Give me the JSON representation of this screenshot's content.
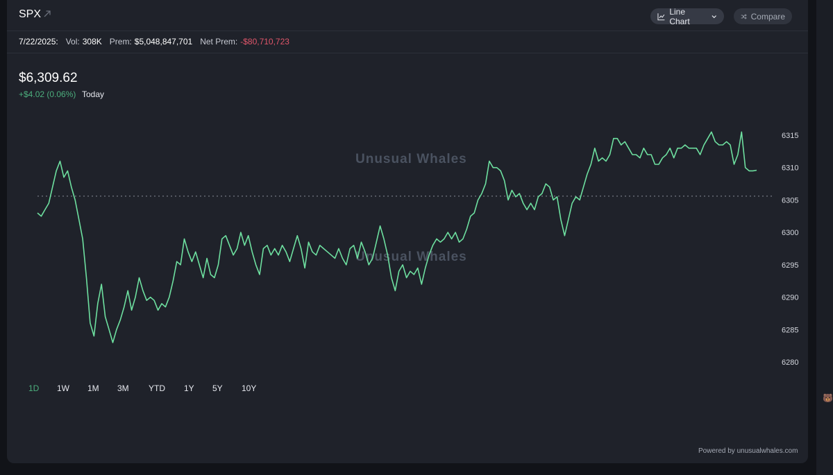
{
  "header": {
    "symbol": "SPX",
    "chart_type_label": "Line Chart",
    "compare_label": "Compare"
  },
  "stats": {
    "date": "7/22/2025:",
    "vol_label": "Vol:",
    "vol_value": "308K",
    "prem_label": "Prem:",
    "prem_value": "$5,048,847,701",
    "net_prem_label": "Net Prem:",
    "net_prem_value": "-$80,710,723"
  },
  "quote": {
    "price": "$6,309.62",
    "change": "+$4.02 (0.06%)",
    "period": "Today"
  },
  "watermark": "Unusual Whales",
  "timeframes": [
    "1D",
    "1W",
    "1M",
    "3M",
    "YTD",
    "1Y",
    "5Y",
    "10Y"
  ],
  "active_timeframe": "1D",
  "footer": "Powered by unusualwhales.com",
  "colors": {
    "line": "#6ee0a0",
    "positive": "#4caf7d",
    "negative": "#e0566a",
    "background": "#1f222a"
  },
  "chart_data": {
    "type": "line",
    "title": "",
    "xlabel": "",
    "ylabel": "",
    "ylim": [
      6277,
      6318
    ],
    "yticks": [
      6315,
      6310,
      6305,
      6300,
      6295,
      6290,
      6285,
      6280
    ],
    "reference_line": 6305.6,
    "series": [
      {
        "values": [
          6303,
          6302.5,
          6303.5,
          6304.5,
          6307,
          6309.5,
          6311,
          6308.5,
          6309.5,
          6307,
          6305,
          6302,
          6299,
          6293,
          6286,
          6284,
          6289,
          6292,
          6287,
          6285,
          6283,
          6285,
          6286.5,
          6288.5,
          6291,
          6288,
          6290,
          6293,
          6291,
          6289.5,
          6290,
          6289.5,
          6288,
          6289,
          6288.5,
          6290,
          6292.5,
          6295.5,
          6295,
          6299,
          6297,
          6295.5,
          6297,
          6295,
          6293,
          6296,
          6293.5,
          6293,
          6295,
          6299,
          6299.5,
          6298,
          6296.5,
          6297.5,
          6300,
          6298,
          6299.5,
          6297,
          6295,
          6293.5,
          6297.5,
          6298,
          6296.5,
          6297.5,
          6296.5,
          6298,
          6297,
          6295.5,
          6297.5,
          6299.5,
          6297.5,
          6294.5,
          6298.5,
          6297,
          6296.5,
          6298,
          6297.5,
          6297,
          6296.5,
          6296,
          6297.5,
          6296,
          6295,
          6297.5,
          6298,
          6296,
          6298.5,
          6297,
          6295,
          6296,
          6298.5,
          6301,
          6299,
          6296.5,
          6293,
          6291,
          6294,
          6295,
          6293,
          6294,
          6293.5,
          6294.5,
          6292,
          6294.5,
          6296.5,
          6298,
          6299,
          6298.5,
          6299,
          6300,
          6299,
          6300,
          6298.5,
          6299,
          6300.5,
          6302.5,
          6303,
          6305,
          6306,
          6307.5,
          6311,
          6310,
          6310,
          6309.5,
          6308,
          6305,
          6306.5,
          6305.5,
          6306,
          6304.5,
          6303.5,
          6304.5,
          6303.5,
          6305.5,
          6306,
          6307.5,
          6307,
          6305,
          6305.5,
          6302,
          6299.5,
          6302,
          6304.5,
          6305.5,
          6305,
          6307,
          6309,
          6310.5,
          6313,
          6311,
          6311.5,
          6311,
          6312,
          6314.5,
          6314.5,
          6313.5,
          6314,
          6313,
          6312,
          6312,
          6311.5,
          6313,
          6312,
          6312,
          6310.5,
          6310.5,
          6311.5,
          6312,
          6313,
          6311.5,
          6313,
          6313,
          6313.5,
          6313,
          6313,
          6313,
          6312,
          6313.5,
          6314.5,
          6315.5,
          6314,
          6313.5,
          6313.5,
          6314,
          6313.5,
          6310.5,
          6312,
          6315.5,
          6310,
          6309.5,
          6309.5,
          6309.6
        ]
      }
    ]
  }
}
